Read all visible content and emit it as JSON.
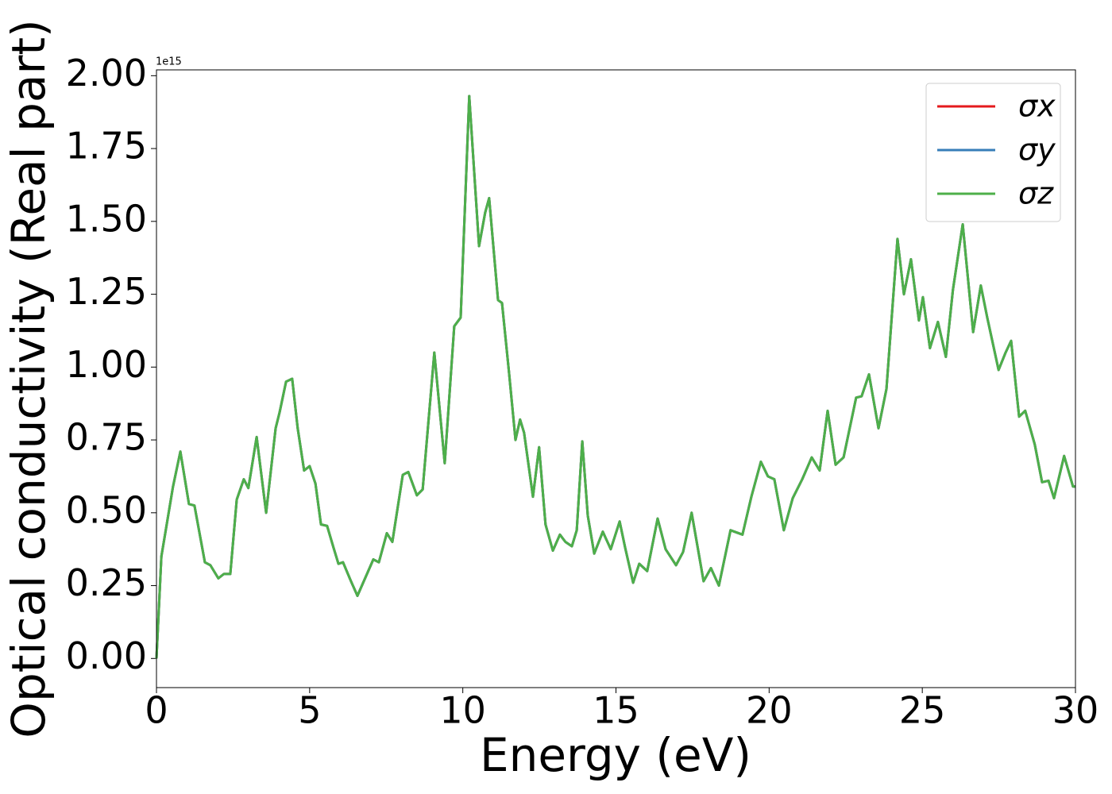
{
  "chart_data": {
    "type": "line",
    "xlabel": "Energy (eV)",
    "ylabel": "Optical conductivity (Real part)",
    "y_offset_label": "1e15",
    "xlim": [
      0,
      30
    ],
    "xticks": [
      0,
      5,
      10,
      15,
      20,
      25,
      30
    ],
    "ylim": [
      -0.1,
      2.02
    ],
    "yticks": [
      {
        "value": 0,
        "label": "0.00"
      },
      0.25,
      {
        "value": 0.5,
        "label": "0.50"
      },
      0.75,
      {
        "value": 1,
        "label": "1.00"
      },
      1.25,
      {
        "value": 1.5,
        "label": "1.50"
      },
      1.75,
      {
        "value": 2,
        "label": "2.00"
      }
    ],
    "legend": "upper right",
    "x": [
      0,
      0.16,
      0.35,
      0.54,
      0.78,
      1.06,
      1.24,
      1.58,
      1.76,
      2.02,
      2.2,
      2.41,
      2.62,
      2.85,
      3.0,
      3.27,
      3.58,
      3.89,
      4.02,
      4.23,
      4.43,
      4.61,
      4.82,
      5.0,
      5.19,
      5.37,
      5.57,
      5.78,
      5.94,
      6.09,
      6.35,
      6.56,
      7.08,
      7.26,
      7.52,
      7.7,
      8.04,
      8.22,
      8.5,
      8.69,
      9.07,
      9.41,
      9.72,
      9.93,
      10.21,
      10.53,
      10.73,
      10.86,
      11.15,
      11.28,
      11.51,
      11.72,
      11.87,
      12.0,
      12.29,
      12.49,
      12.7,
      12.94,
      13.17,
      13.35,
      13.56,
      13.72,
      13.9,
      14.08,
      14.29,
      14.57,
      14.83,
      15.12,
      15.3,
      15.56,
      15.76,
      16.02,
      16.36,
      16.62,
      16.96,
      17.19,
      17.47,
      17.86,
      18.1,
      18.36,
      18.74,
      19.13,
      19.42,
      19.73,
      19.96,
      20.17,
      20.48,
      20.77,
      21.08,
      21.39,
      21.65,
      21.91,
      22.17,
      22.43,
      22.84,
      23.02,
      23.26,
      23.57,
      23.83,
      24.19,
      24.4,
      24.63,
      24.89,
      25.02,
      25.25,
      25.51,
      25.77,
      26.0,
      26.32,
      26.66,
      26.91,
      27.12,
      27.49,
      27.72,
      27.9,
      28.16,
      28.36,
      28.67,
      28.91,
      29.12,
      29.3,
      29.63,
      29.92,
      30
    ],
    "series": [
      {
        "name": "σx",
        "color": "#e41a1c",
        "values": [
          0,
          0.35,
          0.47,
          0.59,
          0.71,
          0.53,
          0.525,
          0.33,
          0.32,
          0.275,
          0.29,
          0.29,
          0.545,
          0.615,
          0.585,
          0.76,
          0.5,
          0.79,
          0.845,
          0.95,
          0.96,
          0.79,
          0.645,
          0.66,
          0.6,
          0.46,
          0.455,
          0.38,
          0.325,
          0.33,
          0.265,
          0.215,
          0.34,
          0.33,
          0.43,
          0.4,
          0.63,
          0.64,
          0.56,
          0.58,
          1.05,
          0.67,
          1.14,
          1.17,
          1.93,
          1.415,
          1.53,
          1.58,
          1.23,
          1.22,
          0.98,
          0.75,
          0.82,
          0.775,
          0.555,
          0.725,
          0.46,
          0.37,
          0.425,
          0.4,
          0.385,
          0.44,
          0.745,
          0.49,
          0.36,
          0.435,
          0.375,
          0.47,
          0.38,
          0.26,
          0.325,
          0.3,
          0.48,
          0.375,
          0.32,
          0.365,
          0.5,
          0.265,
          0.31,
          0.25,
          0.44,
          0.425,
          0.555,
          0.675,
          0.625,
          0.615,
          0.44,
          0.55,
          0.615,
          0.69,
          0.645,
          0.85,
          0.665,
          0.69,
          0.895,
          0.9,
          0.975,
          0.79,
          0.925,
          1.44,
          1.25,
          1.37,
          1.16,
          1.24,
          1.065,
          1.155,
          1.035,
          1.265,
          1.49,
          1.12,
          1.28,
          1.17,
          0.99,
          1.05,
          1.09,
          0.83,
          0.85,
          0.735,
          0.605,
          0.61,
          0.55,
          0.695,
          0.59,
          0.59
        ]
      },
      {
        "name": "σy",
        "color": "#377eb8",
        "values": [
          0,
          0.35,
          0.47,
          0.59,
          0.71,
          0.53,
          0.525,
          0.33,
          0.32,
          0.275,
          0.29,
          0.29,
          0.545,
          0.615,
          0.585,
          0.76,
          0.5,
          0.79,
          0.845,
          0.95,
          0.96,
          0.79,
          0.645,
          0.66,
          0.6,
          0.46,
          0.455,
          0.38,
          0.325,
          0.33,
          0.265,
          0.215,
          0.34,
          0.33,
          0.43,
          0.4,
          0.63,
          0.64,
          0.56,
          0.58,
          1.05,
          0.67,
          1.14,
          1.17,
          1.93,
          1.415,
          1.53,
          1.58,
          1.23,
          1.22,
          0.98,
          0.75,
          0.82,
          0.775,
          0.555,
          0.725,
          0.46,
          0.37,
          0.425,
          0.4,
          0.385,
          0.44,
          0.745,
          0.49,
          0.36,
          0.435,
          0.375,
          0.47,
          0.38,
          0.26,
          0.325,
          0.3,
          0.48,
          0.375,
          0.32,
          0.365,
          0.5,
          0.265,
          0.31,
          0.25,
          0.44,
          0.425,
          0.555,
          0.675,
          0.625,
          0.615,
          0.44,
          0.55,
          0.615,
          0.69,
          0.645,
          0.85,
          0.665,
          0.69,
          0.895,
          0.9,
          0.975,
          0.79,
          0.925,
          1.44,
          1.25,
          1.37,
          1.16,
          1.24,
          1.065,
          1.155,
          1.035,
          1.265,
          1.49,
          1.12,
          1.28,
          1.17,
          0.99,
          1.05,
          1.09,
          0.83,
          0.85,
          0.735,
          0.605,
          0.61,
          0.55,
          0.695,
          0.59,
          0.59
        ]
      },
      {
        "name": "σz",
        "color": "#4daf4a",
        "values": [
          0,
          0.35,
          0.47,
          0.59,
          0.71,
          0.53,
          0.525,
          0.33,
          0.32,
          0.275,
          0.29,
          0.29,
          0.545,
          0.615,
          0.585,
          0.76,
          0.5,
          0.79,
          0.845,
          0.95,
          0.96,
          0.79,
          0.645,
          0.66,
          0.6,
          0.46,
          0.455,
          0.38,
          0.325,
          0.33,
          0.265,
          0.215,
          0.34,
          0.33,
          0.43,
          0.4,
          0.63,
          0.64,
          0.56,
          0.58,
          1.05,
          0.67,
          1.14,
          1.17,
          1.93,
          1.415,
          1.53,
          1.58,
          1.23,
          1.22,
          0.98,
          0.75,
          0.82,
          0.775,
          0.555,
          0.725,
          0.46,
          0.37,
          0.425,
          0.4,
          0.385,
          0.44,
          0.745,
          0.49,
          0.36,
          0.435,
          0.375,
          0.47,
          0.38,
          0.26,
          0.325,
          0.3,
          0.48,
          0.375,
          0.32,
          0.365,
          0.5,
          0.265,
          0.31,
          0.25,
          0.44,
          0.425,
          0.555,
          0.675,
          0.625,
          0.615,
          0.44,
          0.55,
          0.615,
          0.69,
          0.645,
          0.85,
          0.665,
          0.69,
          0.895,
          0.9,
          0.975,
          0.79,
          0.925,
          1.44,
          1.25,
          1.37,
          1.16,
          1.24,
          1.065,
          1.155,
          1.035,
          1.265,
          1.49,
          1.12,
          1.28,
          1.17,
          0.99,
          1.05,
          1.09,
          0.83,
          0.85,
          0.735,
          0.605,
          0.61,
          0.55,
          0.695,
          0.59,
          0.59
        ]
      }
    ]
  }
}
